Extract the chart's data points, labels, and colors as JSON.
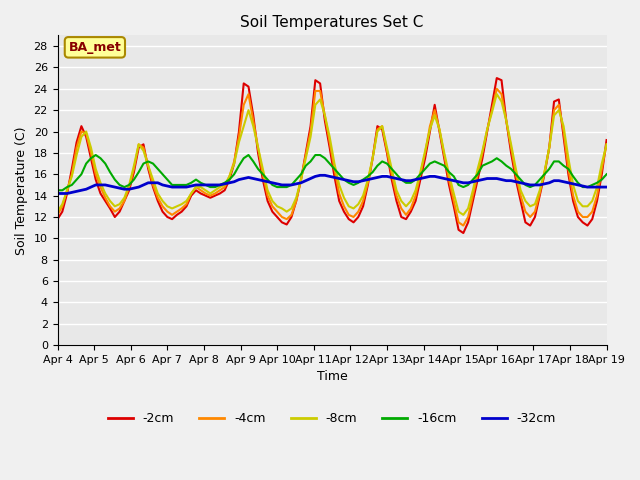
{
  "title": "Soil Temperatures Set C",
  "xlabel": "Time",
  "ylabel": "Soil Temperature (C)",
  "ylim": [
    0,
    29
  ],
  "yticks": [
    0,
    2,
    4,
    6,
    8,
    10,
    12,
    14,
    16,
    18,
    20,
    22,
    24,
    26,
    28
  ],
  "xtick_labels": [
    "Apr 4",
    "Apr 5",
    "Apr 6",
    "Apr 7",
    "Apr 8",
    "Apr 9",
    "Apr 10",
    "Apr 11",
    "Apr 12",
    "Apr 13",
    "Apr 14",
    "Apr 15",
    "Apr 16",
    "Apr 17",
    "Apr 18",
    "Apr 19"
  ],
  "annotation_text": "BA_met",
  "annotation_bg": "#ffff99",
  "annotation_border": "#aa8800",
  "annotation_text_color": "#880000",
  "series_colors": {
    "neg2cm": "#dd0000",
    "neg4cm": "#ff8800",
    "neg8cm": "#cccc00",
    "neg16cm": "#00aa00",
    "neg32cm": "#0000cc"
  },
  "series_lw": {
    "neg2cm": 1.5,
    "neg4cm": 1.5,
    "neg8cm": 1.5,
    "neg16cm": 1.5,
    "neg32cm": 2.0
  },
  "series_labels": {
    "neg2cm": "-2cm",
    "neg4cm": "-4cm",
    "neg8cm": "-8cm",
    "neg16cm": "-16cm",
    "neg32cm": "-32cm"
  },
  "y_neg2cm": [
    11.8,
    12.5,
    14.2,
    16.5,
    19.0,
    20.5,
    19.5,
    17.5,
    15.5,
    14.2,
    13.5,
    12.8,
    12.0,
    12.5,
    13.5,
    14.5,
    16.2,
    18.5,
    18.8,
    16.5,
    14.8,
    13.5,
    12.5,
    12.0,
    11.8,
    12.2,
    12.5,
    13.0,
    14.0,
    14.5,
    14.2,
    14.0,
    13.8,
    14.0,
    14.2,
    14.5,
    15.5,
    17.0,
    20.0,
    24.5,
    24.2,
    21.5,
    18.0,
    15.5,
    13.5,
    12.5,
    12.0,
    11.5,
    11.3,
    12.0,
    13.5,
    15.5,
    18.0,
    20.5,
    24.8,
    24.5,
    21.0,
    18.5,
    15.8,
    13.5,
    12.5,
    11.8,
    11.5,
    12.0,
    13.0,
    15.0,
    17.5,
    20.5,
    20.2,
    18.0,
    15.5,
    13.5,
    12.0,
    11.8,
    12.5,
    13.5,
    15.5,
    17.5,
    20.0,
    22.5,
    20.0,
    17.5,
    15.0,
    13.0,
    10.8,
    10.5,
    11.5,
    13.5,
    15.5,
    17.5,
    20.0,
    22.5,
    25.0,
    24.8,
    21.0,
    18.0,
    15.5,
    13.5,
    11.5,
    11.2,
    12.0,
    14.0,
    16.0,
    18.5,
    22.8,
    23.0,
    19.5,
    16.0,
    13.5,
    12.0,
    11.5,
    11.2,
    11.8,
    13.5,
    16.0,
    19.2
  ],
  "y_neg4cm": [
    12.2,
    13.0,
    14.5,
    16.0,
    18.5,
    20.0,
    19.8,
    18.0,
    16.0,
    14.8,
    13.8,
    13.0,
    12.5,
    12.8,
    13.5,
    14.8,
    16.5,
    18.8,
    18.5,
    16.8,
    15.0,
    13.8,
    13.0,
    12.5,
    12.2,
    12.5,
    12.8,
    13.2,
    14.2,
    14.8,
    14.5,
    14.2,
    14.0,
    14.2,
    14.5,
    14.8,
    15.8,
    17.2,
    19.5,
    22.5,
    23.5,
    21.0,
    18.5,
    16.0,
    14.0,
    13.0,
    12.5,
    12.0,
    11.8,
    12.2,
    13.5,
    15.5,
    17.8,
    20.0,
    23.8,
    23.8,
    21.5,
    19.0,
    16.5,
    14.2,
    13.0,
    12.2,
    12.0,
    12.5,
    13.5,
    15.2,
    17.5,
    20.2,
    20.5,
    18.2,
    16.0,
    14.0,
    12.8,
    12.2,
    12.8,
    14.0,
    16.0,
    18.0,
    20.5,
    22.0,
    20.2,
    17.8,
    15.5,
    13.5,
    11.5,
    11.2,
    12.0,
    14.0,
    16.0,
    18.0,
    20.2,
    22.0,
    24.0,
    23.5,
    21.0,
    18.5,
    16.0,
    14.0,
    12.5,
    12.0,
    12.5,
    14.2,
    16.2,
    18.5,
    22.0,
    22.5,
    20.0,
    16.5,
    14.0,
    12.5,
    12.0,
    12.0,
    12.5,
    14.0,
    16.5,
    18.8
  ],
  "y_neg8cm": [
    12.5,
    13.2,
    14.5,
    15.8,
    17.8,
    19.5,
    20.0,
    18.5,
    16.5,
    15.2,
    14.2,
    13.5,
    13.0,
    13.2,
    13.8,
    15.0,
    16.8,
    18.8,
    18.2,
    16.8,
    15.5,
    14.2,
    13.5,
    13.0,
    12.8,
    13.0,
    13.2,
    13.5,
    14.2,
    14.8,
    14.8,
    14.5,
    14.2,
    14.5,
    14.8,
    15.0,
    15.8,
    17.0,
    19.0,
    20.5,
    22.0,
    20.5,
    18.5,
    16.5,
    14.5,
    13.5,
    13.0,
    12.8,
    12.5,
    12.8,
    13.8,
    15.5,
    17.5,
    19.5,
    22.5,
    23.0,
    21.5,
    19.5,
    17.0,
    15.0,
    13.8,
    13.0,
    12.8,
    13.2,
    14.0,
    15.5,
    17.5,
    20.0,
    20.5,
    18.5,
    16.5,
    14.5,
    13.5,
    13.0,
    13.5,
    14.5,
    16.2,
    18.2,
    20.2,
    21.5,
    20.2,
    18.0,
    16.0,
    14.2,
    12.5,
    12.2,
    12.8,
    14.5,
    16.5,
    18.2,
    20.2,
    21.8,
    23.5,
    22.8,
    21.0,
    18.8,
    16.5,
    14.5,
    13.5,
    13.0,
    13.2,
    14.5,
    16.2,
    18.5,
    21.5,
    22.0,
    20.5,
    17.5,
    15.0,
    13.5,
    13.0,
    13.0,
    13.5,
    14.8,
    17.0,
    18.8
  ],
  "y_neg16cm": [
    14.5,
    14.5,
    14.8,
    15.0,
    15.5,
    16.0,
    17.0,
    17.5,
    17.8,
    17.5,
    17.0,
    16.2,
    15.5,
    15.0,
    14.8,
    15.0,
    15.5,
    16.2,
    17.0,
    17.2,
    17.0,
    16.5,
    16.0,
    15.5,
    15.0,
    15.0,
    15.0,
    15.0,
    15.2,
    15.5,
    15.2,
    15.0,
    14.8,
    14.8,
    15.0,
    15.2,
    15.5,
    16.0,
    16.8,
    17.5,
    17.8,
    17.2,
    16.5,
    16.0,
    15.5,
    15.0,
    14.8,
    14.8,
    14.8,
    15.0,
    15.5,
    16.0,
    16.8,
    17.2,
    17.8,
    17.8,
    17.5,
    17.0,
    16.5,
    16.0,
    15.5,
    15.2,
    15.0,
    15.2,
    15.5,
    15.8,
    16.2,
    16.8,
    17.2,
    17.0,
    16.5,
    16.0,
    15.5,
    15.2,
    15.2,
    15.5,
    16.0,
    16.5,
    17.0,
    17.2,
    17.0,
    16.8,
    16.2,
    15.8,
    15.0,
    14.8,
    15.0,
    15.5,
    16.0,
    16.8,
    17.0,
    17.2,
    17.5,
    17.2,
    16.8,
    16.5,
    16.0,
    15.5,
    15.0,
    14.8,
    15.0,
    15.5,
    16.0,
    16.5,
    17.2,
    17.2,
    16.8,
    16.5,
    15.8,
    15.2,
    14.8,
    14.8,
    15.0,
    15.2,
    15.5,
    16.0
  ],
  "y_neg32cm": [
    14.2,
    14.2,
    14.2,
    14.3,
    14.4,
    14.5,
    14.6,
    14.8,
    15.0,
    15.0,
    15.0,
    14.9,
    14.8,
    14.7,
    14.6,
    14.6,
    14.7,
    14.8,
    15.0,
    15.2,
    15.2,
    15.2,
    15.0,
    14.9,
    14.8,
    14.8,
    14.8,
    14.8,
    14.9,
    15.0,
    15.0,
    15.0,
    15.0,
    15.0,
    15.0,
    15.1,
    15.2,
    15.3,
    15.5,
    15.6,
    15.7,
    15.6,
    15.5,
    15.4,
    15.3,
    15.2,
    15.1,
    15.0,
    15.0,
    15.0,
    15.1,
    15.2,
    15.4,
    15.6,
    15.8,
    15.9,
    15.9,
    15.8,
    15.7,
    15.6,
    15.5,
    15.4,
    15.3,
    15.3,
    15.4,
    15.5,
    15.6,
    15.7,
    15.8,
    15.8,
    15.7,
    15.6,
    15.5,
    15.4,
    15.4,
    15.5,
    15.6,
    15.7,
    15.8,
    15.8,
    15.7,
    15.6,
    15.5,
    15.4,
    15.3,
    15.2,
    15.2,
    15.3,
    15.4,
    15.5,
    15.6,
    15.6,
    15.6,
    15.5,
    15.4,
    15.4,
    15.3,
    15.2,
    15.1,
    15.0,
    15.0,
    15.0,
    15.1,
    15.2,
    15.4,
    15.4,
    15.3,
    15.2,
    15.1,
    15.0,
    14.9,
    14.8,
    14.8,
    14.8,
    14.8,
    14.8
  ]
}
